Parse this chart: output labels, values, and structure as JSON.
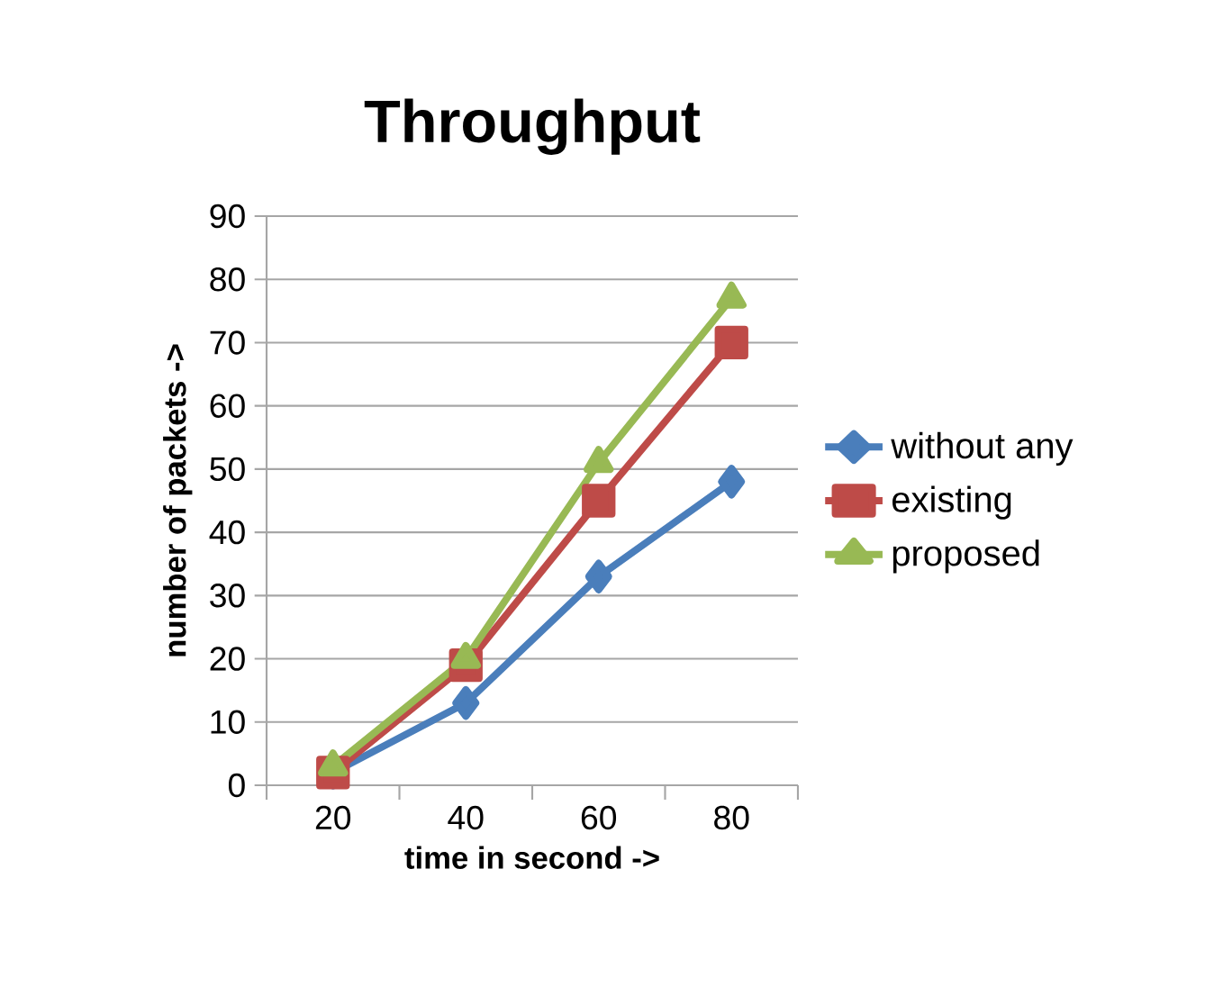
{
  "chart_data": {
    "type": "line",
    "title": "Throughput",
    "xlabel": "time in second ->",
    "ylabel": "number  of packets ->",
    "categories": [
      "20",
      "40",
      "60",
      "80"
    ],
    "series": [
      {
        "name": "without any",
        "color": "#4a7ebb",
        "marker": "diamond",
        "values": [
          2,
          13,
          33,
          48
        ]
      },
      {
        "name": "existing",
        "color": "#be4b48",
        "marker": "square",
        "values": [
          2,
          19,
          45,
          70
        ]
      },
      {
        "name": "proposed",
        "color": "#98b954",
        "marker": "triangle",
        "values": [
          3,
          20,
          51,
          77
        ]
      }
    ],
    "ylim": [
      0,
      90
    ],
    "yticks": [
      0,
      10,
      20,
      30,
      40,
      50,
      60,
      70,
      80,
      90
    ],
    "grid": "y",
    "legend": "right",
    "line_style": "solid"
  }
}
